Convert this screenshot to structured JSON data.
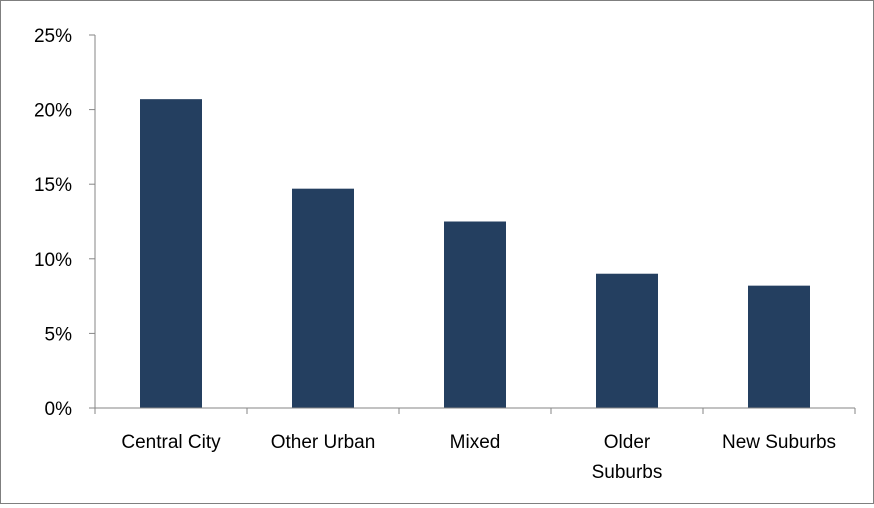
{
  "chart_data": {
    "type": "bar",
    "categories": [
      [
        "Central City"
      ],
      [
        "Other Urban"
      ],
      [
        "Mixed"
      ],
      [
        "Older",
        "Suburbs"
      ],
      [
        "New Suburbs"
      ]
    ],
    "values": [
      20.7,
      14.7,
      12.5,
      9.0,
      8.2
    ],
    "ylim": [
      0,
      25
    ],
    "yticks": [
      0,
      5,
      10,
      15,
      20,
      25
    ],
    "ytick_format": "%",
    "bar_color": "#243f60",
    "axis_color": "#868686",
    "grid": false,
    "legend": "none"
  }
}
